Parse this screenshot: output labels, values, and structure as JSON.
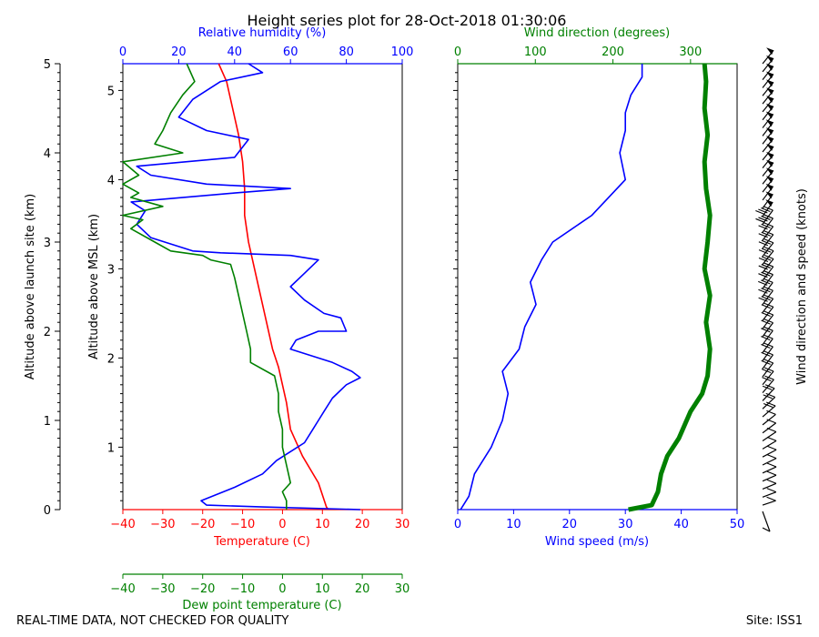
{
  "title": "Height series plot for 28-Oct-2018 01:30:06",
  "footer_left": "REAL-TIME DATA, NOT CHECKED FOR QUALITY",
  "footer_right": "Site: ISS1",
  "colors": {
    "temp": "#ff0000",
    "rh": "#0000ff",
    "dew": "#008000",
    "wspd": "#0000ff",
    "wdir": "#008000",
    "axis": "#000000"
  },
  "chart_data": [
    {
      "type": "line",
      "title": "Height series plot for 28-Oct-2018 01:30:06",
      "ylabel": "Altitude above MSL (km)",
      "ylim": [
        0.3,
        5.3
      ],
      "yticks": [
        "1",
        "2",
        "3",
        "4",
        "5"
      ],
      "left_axis": {
        "label": "Altitude above launch site (km)",
        "range": [
          0,
          5
        ],
        "ticks": [
          "0",
          "1",
          "2",
          "3",
          "4",
          "5"
        ]
      },
      "axes": {
        "temperature": {
          "label": "Temperature (C)",
          "range": [
            -40,
            30
          ],
          "ticks": [
            "−40",
            "−30",
            "−20",
            "−10",
            "0",
            "10",
            "20",
            "30"
          ]
        },
        "humidity": {
          "label": "Relative humidity (%)",
          "range": [
            0,
            100
          ],
          "ticks": [
            "0",
            "20",
            "40",
            "60",
            "80",
            "100"
          ]
        },
        "dewpoint": {
          "label": "Dew point temperature (C)",
          "range": [
            -40,
            30
          ],
          "ticks": [
            "−40",
            "−30",
            "−20",
            "−10",
            "0",
            "10",
            "20",
            "30"
          ]
        }
      },
      "series": [
        {
          "name": "Temperature (C)",
          "axis": "temperature",
          "points": [
            [
              11.5,
              0.3
            ],
            [
              11,
              0.33
            ],
            [
              9,
              0.6
            ],
            [
              5,
              0.9
            ],
            [
              2,
              1.2
            ],
            [
              1,
              1.5
            ],
            [
              0,
              1.7
            ],
            [
              -1,
              1.9
            ],
            [
              -2.5,
              2.1
            ],
            [
              -4,
              2.4
            ],
            [
              -5.5,
              2.7
            ],
            [
              -7,
              3.0
            ],
            [
              -8.5,
              3.3
            ],
            [
              -9.5,
              3.6
            ],
            [
              -9.5,
              3.9
            ],
            [
              -10,
              4.2
            ],
            [
              -11,
              4.5
            ],
            [
              -12,
              4.7
            ],
            [
              -13,
              4.9
            ],
            [
              -14,
              5.1
            ],
            [
              -16,
              5.3
            ]
          ]
        },
        {
          "name": "Relative humidity (%)",
          "axis": "humidity",
          "points": [
            [
              85,
              0.3
            ],
            [
              50,
              0.33
            ],
            [
              30,
              0.35
            ],
            [
              28,
              0.4
            ],
            [
              40,
              0.55
            ],
            [
              50,
              0.7
            ],
            [
              55,
              0.85
            ],
            [
              60,
              0.95
            ],
            [
              65,
              1.05
            ],
            [
              68,
              1.2
            ],
            [
              70,
              1.3
            ],
            [
              72,
              1.4
            ],
            [
              75,
              1.55
            ],
            [
              80,
              1.7
            ],
            [
              85,
              1.78
            ],
            [
              82,
              1.85
            ],
            [
              75,
              1.95
            ],
            [
              60,
              2.1
            ],
            [
              62,
              2.2
            ],
            [
              70,
              2.3
            ],
            [
              80,
              2.3
            ],
            [
              78,
              2.45
            ],
            [
              72,
              2.5
            ],
            [
              65,
              2.65
            ],
            [
              60,
              2.8
            ],
            [
              65,
              2.95
            ],
            [
              70,
              3.1
            ],
            [
              60,
              3.15
            ],
            [
              35,
              3.18
            ],
            [
              25,
              3.2
            ],
            [
              20,
              3.25
            ],
            [
              10,
              3.35
            ],
            [
              5,
              3.5
            ],
            [
              8,
              3.65
            ],
            [
              3,
              3.75
            ],
            [
              40,
              3.85
            ],
            [
              60,
              3.9
            ],
            [
              30,
              3.95
            ],
            [
              10,
              4.05
            ],
            [
              5,
              4.15
            ],
            [
              40,
              4.25
            ],
            [
              45,
              4.45
            ],
            [
              30,
              4.55
            ],
            [
              20,
              4.7
            ],
            [
              25,
              4.9
            ],
            [
              35,
              5.1
            ],
            [
              50,
              5.2
            ],
            [
              45,
              5.3
            ]
          ]
        },
        {
          "name": "Dew point temperature (C)",
          "axis": "dewpoint",
          "points": [
            [
              1,
              0.3
            ],
            [
              1,
              0.4
            ],
            [
              0,
              0.5
            ],
            [
              2,
              0.6
            ],
            [
              1,
              0.8
            ],
            [
              0,
              1.0
            ],
            [
              0,
              1.2
            ],
            [
              -1,
              1.4
            ],
            [
              -1,
              1.6
            ],
            [
              -2,
              1.8
            ],
            [
              -8,
              1.95
            ],
            [
              -8,
              2.1
            ],
            [
              -9,
              2.3
            ],
            [
              -10,
              2.5
            ],
            [
              -11,
              2.7
            ],
            [
              -12,
              2.9
            ],
            [
              -13,
              3.05
            ],
            [
              -18,
              3.1
            ],
            [
              -20,
              3.15
            ],
            [
              -28,
              3.2
            ],
            [
              -32,
              3.3
            ],
            [
              -38,
              3.45
            ],
            [
              -35,
              3.55
            ],
            [
              -40,
              3.6
            ],
            [
              -30,
              3.7
            ],
            [
              -38,
              3.8
            ],
            [
              -36,
              3.85
            ],
            [
              -40,
              3.95
            ],
            [
              -36,
              4.05
            ],
            [
              -40,
              4.2
            ],
            [
              -25,
              4.3
            ],
            [
              -32,
              4.4
            ],
            [
              -30,
              4.55
            ],
            [
              -28,
              4.75
            ],
            [
              -25,
              4.95
            ],
            [
              -22,
              5.1
            ],
            [
              -24,
              5.3
            ]
          ]
        }
      ]
    },
    {
      "type": "line",
      "ylim": [
        0.3,
        5.3
      ],
      "axes": {
        "speed": {
          "label": "Wind speed (m/s)",
          "range": [
            0,
            50
          ],
          "ticks": [
            "0",
            "10",
            "20",
            "30",
            "40",
            "50"
          ]
        },
        "direction": {
          "label": "Wind direction (degrees)",
          "range": [
            0,
            360
          ],
          "ticks": [
            "0",
            "100",
            "200",
            "300"
          ]
        }
      },
      "barbs_label": "Wind direction and speed (knots)",
      "series": [
        {
          "name": "Wind speed (m/s)",
          "axis": "speed",
          "points": [
            [
              0.5,
              0.3
            ],
            [
              2,
              0.45
            ],
            [
              3,
              0.7
            ],
            [
              6,
              1.0
            ],
            [
              8,
              1.3
            ],
            [
              9,
              1.6
            ],
            [
              8,
              1.85
            ],
            [
              11,
              2.1
            ],
            [
              12,
              2.35
            ],
            [
              14,
              2.6
            ],
            [
              13,
              2.85
            ],
            [
              15,
              3.1
            ],
            [
              17,
              3.3
            ],
            [
              24,
              3.6
            ],
            [
              30,
              4.0
            ],
            [
              29,
              4.3
            ],
            [
              30,
              4.55
            ],
            [
              30,
              4.75
            ],
            [
              31,
              4.95
            ],
            [
              33,
              5.15
            ],
            [
              33,
              5.3
            ]
          ]
        },
        {
          "name": "Wind direction (degrees)",
          "axis": "direction",
          "points": [
            [
              220,
              0.3
            ],
            [
              250,
              0.35
            ],
            [
              258,
              0.5
            ],
            [
              262,
              0.7
            ],
            [
              270,
              0.9
            ],
            [
              285,
              1.1
            ],
            [
              300,
              1.4
            ],
            [
              315,
              1.6
            ],
            [
              322,
              1.8
            ],
            [
              325,
              2.1
            ],
            [
              320,
              2.4
            ],
            [
              325,
              2.7
            ],
            [
              318,
              3.0
            ],
            [
              322,
              3.3
            ],
            [
              325,
              3.6
            ],
            [
              320,
              3.9
            ],
            [
              318,
              4.2
            ],
            [
              322,
              4.5
            ],
            [
              318,
              4.8
            ],
            [
              320,
              5.1
            ],
            [
              318,
              5.3
            ]
          ]
        }
      ]
    }
  ]
}
